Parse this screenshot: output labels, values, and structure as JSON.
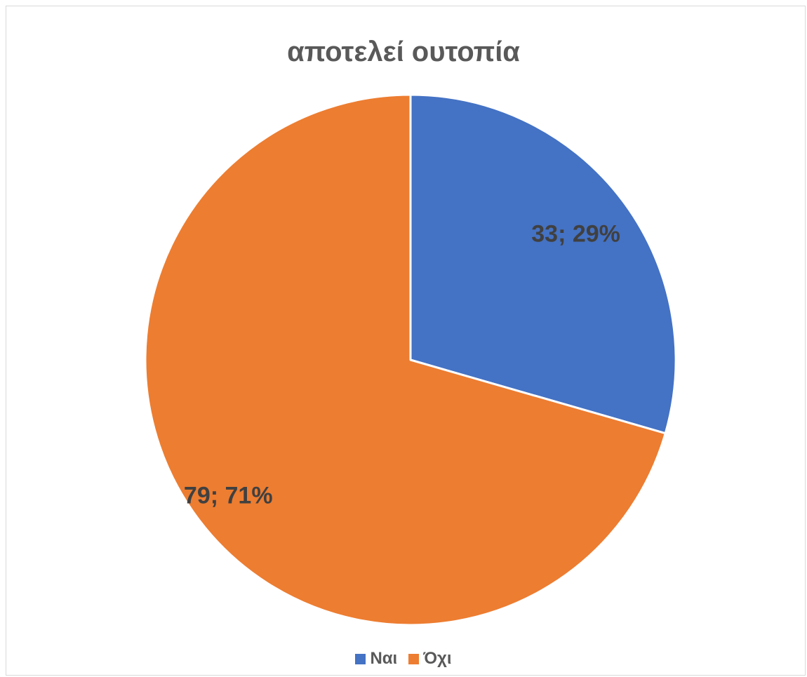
{
  "chart_data": {
    "type": "pie",
    "title": "αποτελεί ουτοπία",
    "categories": [
      "Ναι",
      "Όχι"
    ],
    "values": [
      33,
      79
    ],
    "percentages": [
      29,
      71
    ],
    "data_labels": [
      "33; 29%",
      "79; 71%"
    ],
    "colors": [
      "#4472c4",
      "#ed7d31"
    ],
    "legend_position": "bottom"
  }
}
